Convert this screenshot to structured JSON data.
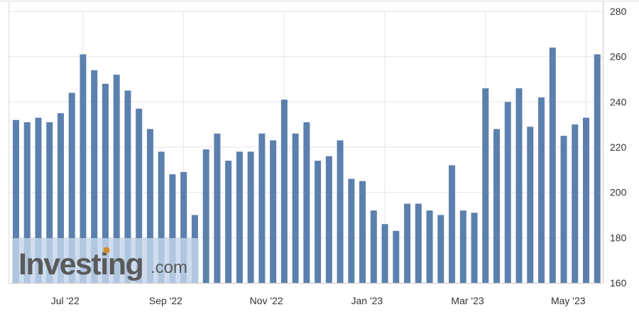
{
  "chart_data": {
    "type": "bar",
    "title": "",
    "xlabel": "",
    "ylabel": "",
    "ylim": [
      160,
      280
    ],
    "yticks": [
      160,
      180,
      200,
      220,
      240,
      260,
      280
    ],
    "ytick_labels": [
      "160",
      "180",
      "200",
      "220",
      "240",
      "260",
      "280"
    ],
    "y_axis_side": "right",
    "grid": true,
    "x_tick_labels": [
      {
        "label": "Jul '22",
        "bar_index": 3
      },
      {
        "label": "Sep '22",
        "bar_index": 12
      },
      {
        "label": "Nov '22",
        "bar_index": 21
      },
      {
        "label": "Jan '23",
        "bar_index": 30
      },
      {
        "label": "Mar '23",
        "bar_index": 39
      },
      {
        "label": "May '23",
        "bar_index": 48
      }
    ],
    "values": [
      232,
      231,
      233,
      231,
      235,
      244,
      261,
      254,
      248,
      252,
      245,
      237,
      228,
      218,
      208,
      209,
      190,
      219,
      226,
      214,
      218,
      218,
      226,
      223,
      241,
      226,
      231,
      214,
      216,
      223,
      206,
      205,
      192,
      186,
      183,
      195,
      195,
      192,
      190,
      212,
      192,
      191,
      246,
      228,
      240,
      246,
      229,
      242,
      264,
      225,
      230,
      233,
      261
    ],
    "bar_color": "#5b80ad"
  },
  "watermark": {
    "brand_text": "Investing",
    "suffix_text": ".com"
  },
  "colors": {
    "bar": "#5b80ad",
    "watermark_band": "#c5d5ea",
    "watermark_text": "#5a5a5a",
    "watermark_suffix": "#d48a2a",
    "grid": "#e6e6e6",
    "axis_text": "#333333"
  }
}
